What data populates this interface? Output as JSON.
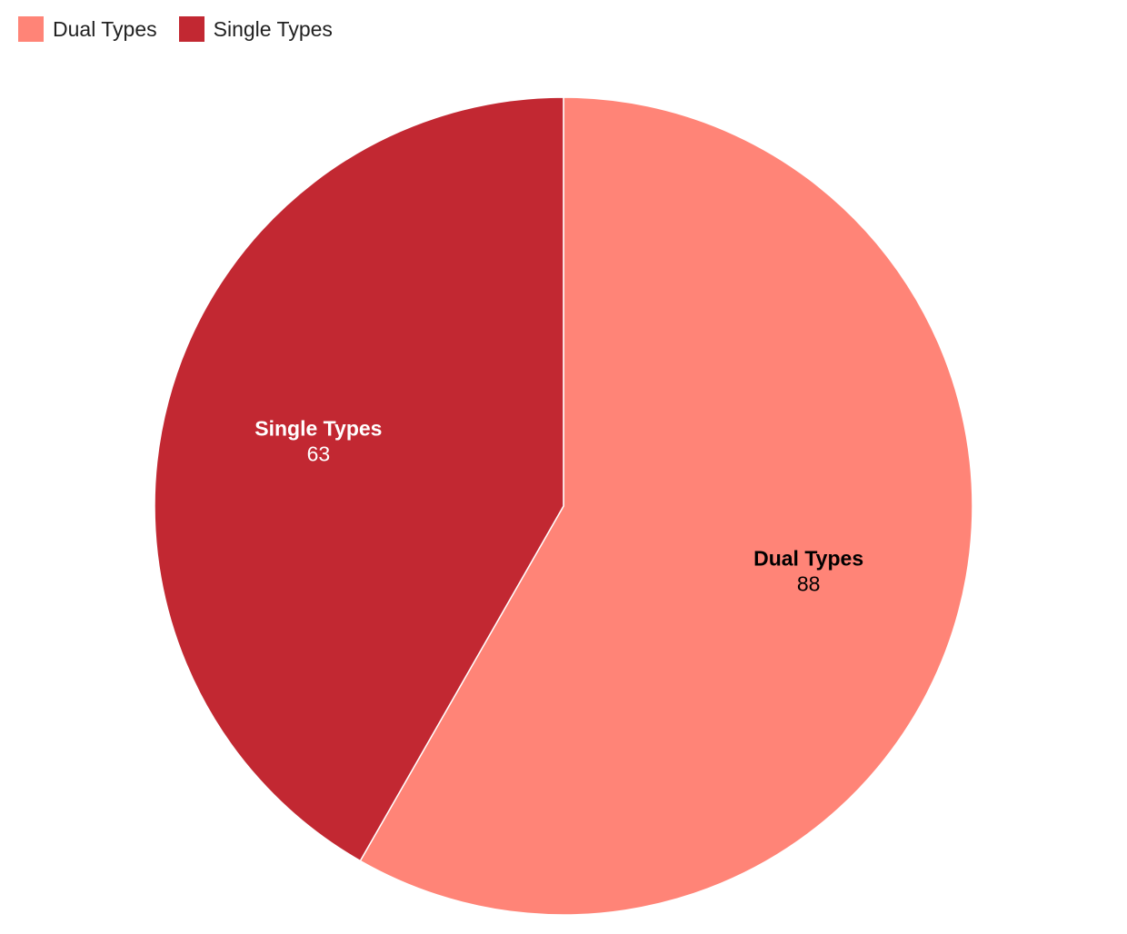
{
  "chart_data": {
    "type": "pie",
    "title": "",
    "legend_position": "top-left",
    "slices": [
      {
        "label": "Dual Types",
        "value": 88,
        "color": "#FF8477",
        "label_color": "#000000"
      },
      {
        "label": "Single Types",
        "value": 63,
        "color": "#C22832",
        "label_color": "#FFFFFF"
      }
    ]
  }
}
